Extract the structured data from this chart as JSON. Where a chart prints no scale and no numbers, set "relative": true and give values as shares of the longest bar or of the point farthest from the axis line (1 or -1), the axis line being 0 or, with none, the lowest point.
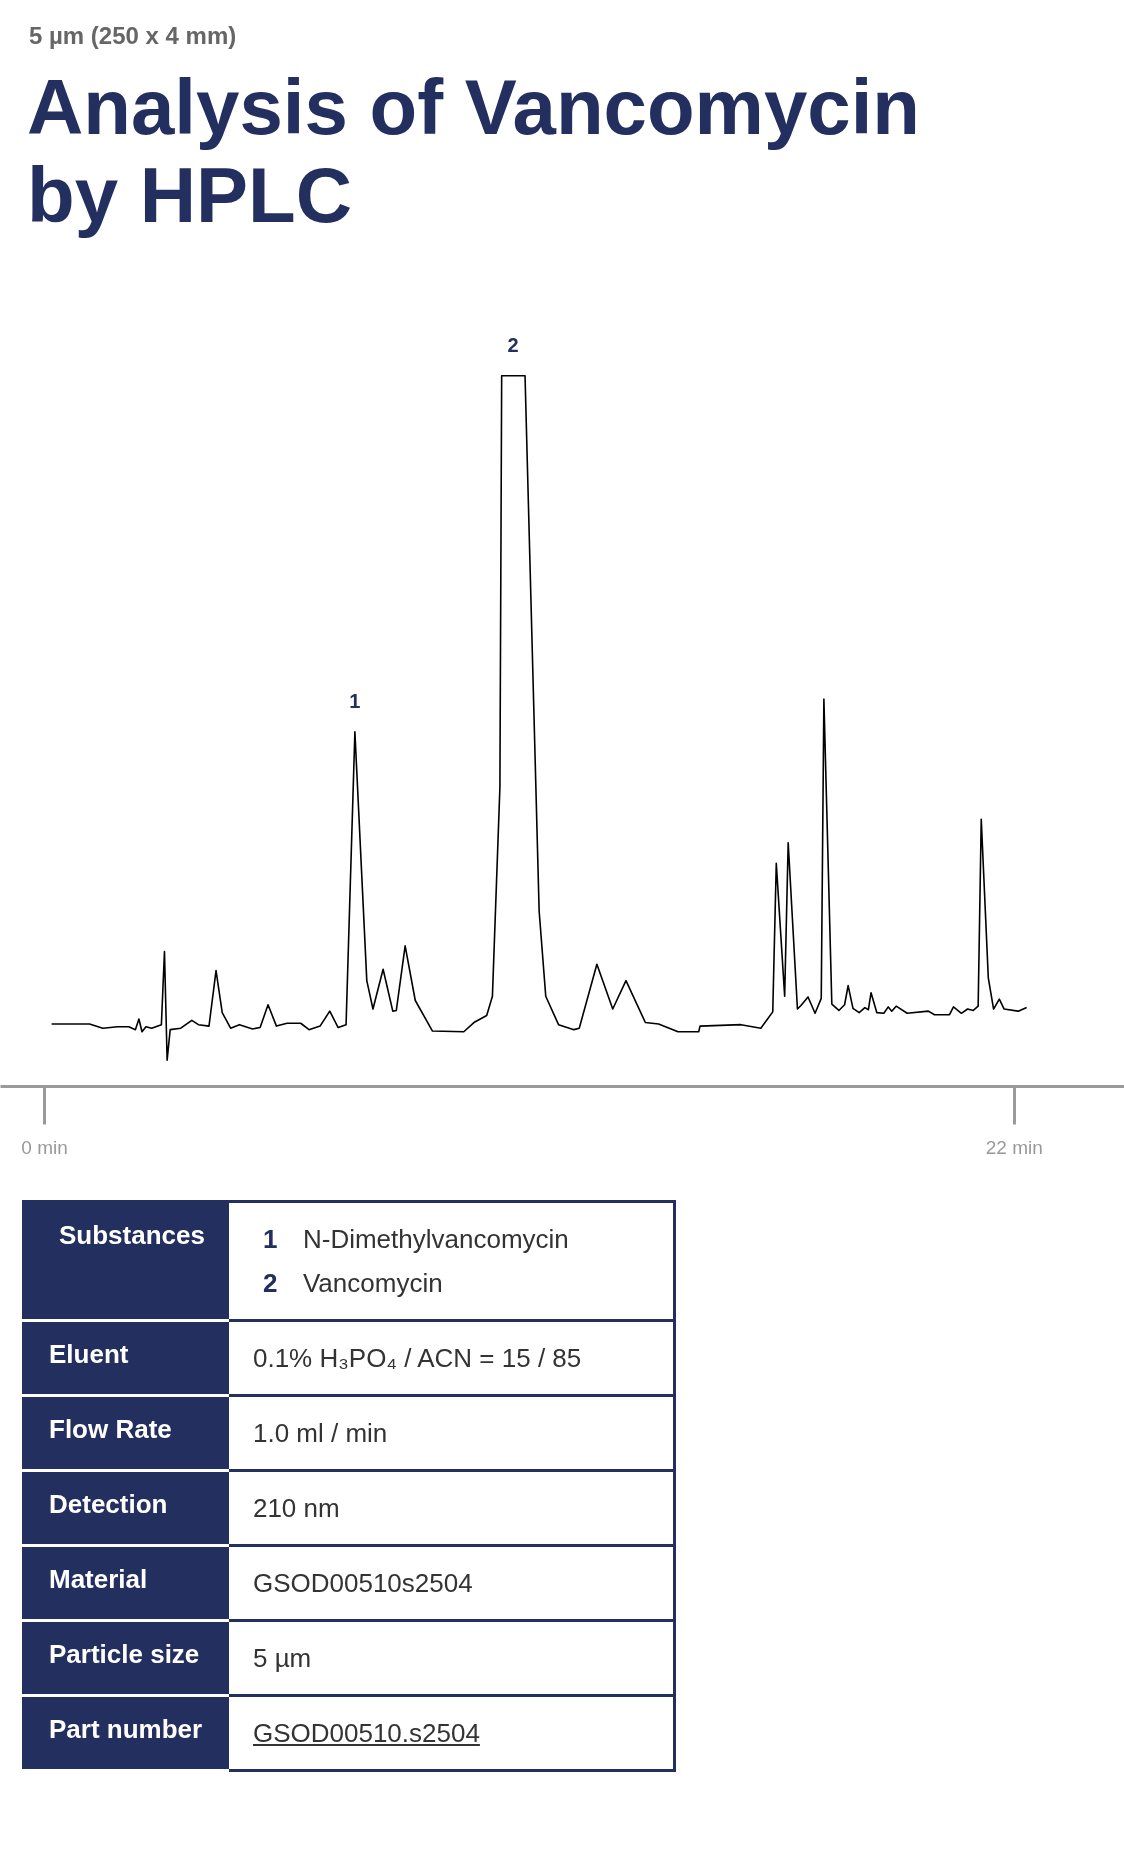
{
  "chart_data": {
    "type": "line",
    "title": "Analysis of Vancomycin by HPLC",
    "subtitle": "5 µm (250 x 4 mm)",
    "relative": true,
    "color": "#000000",
    "grid": false,
    "marker": "none",
    "line_style": "solid",
    "tick_labels": "x",
    "xlim": [
      -1,
      24.5
    ],
    "xticks": [
      {
        "value": 0,
        "label": "0 min"
      },
      {
        "value": 22,
        "label": "22 min"
      }
    ],
    "x": [
      0.16,
      1.02,
      1.32,
      1.66,
      1.91,
      2.06,
      2.14,
      2.21,
      2.3,
      2.43,
      2.65,
      2.72,
      2.78,
      2.85,
      3.09,
      3.34,
      3.49,
      3.73,
      3.89,
      4.03,
      4.22,
      4.42,
      4.72,
      4.89,
      5.07,
      5.26,
      5.5,
      5.81,
      6.0,
      6.25,
      6.47,
      6.66,
      6.84,
      7.04,
      7.31,
      7.45,
      7.68,
      7.9,
      7.98,
      8.18,
      8.41,
      8.8,
      9.51,
      9.74,
      10.03,
      10.16,
      10.33,
      10.37,
      10.9,
      11.22,
      11.37,
      11.66,
      12.01,
      12.13,
      12.53,
      12.89,
      13.19,
      13.63,
      13.93,
      14.37,
      14.84,
      14.87,
      15.8,
      16.25,
      16.52,
      16.6,
      16.79,
      16.87,
      17.08,
      17.16,
      17.32,
      17.48,
      17.62,
      17.68,
      17.86,
      18.02,
      18.15,
      18.23,
      18.34,
      18.48,
      18.61,
      18.69,
      18.75,
      18.88,
      19.04,
      19.14,
      19.22,
      19.32,
      19.57,
      20.05,
      20.19,
      20.53,
      20.62,
      20.8,
      20.94,
      21.07,
      21.18,
      21.25,
      21.41,
      21.53,
      21.66,
      21.77,
      22.09,
      22.28
    ],
    "values": [
      0.088,
      0.088,
      0.082,
      0.084,
      0.084,
      0.08,
      0.095,
      0.077,
      0.084,
      0.082,
      0.087,
      0.19,
      0.037,
      0.08,
      0.082,
      0.093,
      0.087,
      0.085,
      0.163,
      0.104,
      0.082,
      0.087,
      0.081,
      0.083,
      0.115,
      0.085,
      0.089,
      0.089,
      0.08,
      0.085,
      0.106,
      0.083,
      0.087,
      0.499,
      0.149,
      0.109,
      0.165,
      0.106,
      0.107,
      0.198,
      0.121,
      0.078,
      0.077,
      0.09,
      0.1,
      0.127,
      0.421,
      1,
      1,
      0.247,
      0.127,
      0.087,
      0.08,
      0.082,
      0.172,
      0.109,
      0.149,
      0.09,
      0.088,
      0.077,
      0.077,
      0.085,
      0.087,
      0.082,
      0.105,
      0.314,
      0.127,
      0.343,
      0.109,
      0.114,
      0.126,
      0.103,
      0.124,
      0.545,
      0.116,
      0.107,
      0.115,
      0.142,
      0.11,
      0.104,
      0.111,
      0.108,
      0.132,
      0.104,
      0.103,
      0.112,
      0.106,
      0.113,
      0.103,
      0.106,
      0.101,
      0.101,
      0.112,
      0.103,
      0.109,
      0.107,
      0.113,
      0.376,
      0.153,
      0.109,
      0.123,
      0.109,
      0.106,
      0.111
    ],
    "annotations": [
      {
        "text": "1",
        "x": 7.04,
        "y": 0.499
      },
      {
        "text": "2",
        "x": 10.63,
        "y": 1
      },
      "Substances",
      "1 N-Dimethylvancomycin\n2 Vancomycin",
      "Eluent",
      "0.1% H₃PO₄ / ACN = 15 / 85",
      "Flow Rate",
      "1.0 ml / min",
      "Detection",
      "210 nm",
      "Material",
      "GSOD00510s2504",
      "Particle size",
      "5 µm",
      "Part number",
      "GSOD00510.s2504"
    ]
  }
}
